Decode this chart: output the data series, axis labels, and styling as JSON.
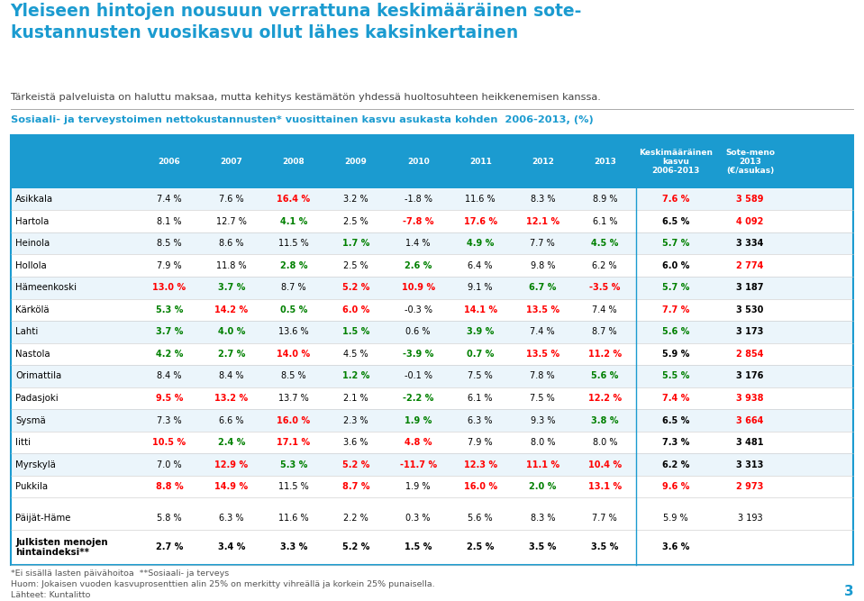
{
  "title_line1": "Yleiseen hintojen nousuun verrattuna keskimääräinen sote-",
  "title_line2": "kustannusten vuosikasvu ollut lähes kaksinkertainen",
  "subtitle": "Tärkeistä palveluista on haluttu maksaa, mutta kehitys kestämätön yhdessä huoltosuhteen heikkenemisen kanssa.",
  "table_title": "Sosiaali- ja terveystoimen nettokustannusten* vuosittainen kasvu asukasta kohden  2006-2013, (%)",
  "col_headers": [
    "2006",
    "2007",
    "2008",
    "2009",
    "2010",
    "2011",
    "2012",
    "2013",
    "Keskimääräinen\nkasvu\n2006-2013",
    "Sote-meno\n2013\n(€/asukas)"
  ],
  "rows": [
    {
      "name": "Asikkala",
      "vals": [
        "7.4 %",
        "7.6 %",
        "16.4 %",
        "3.2 %",
        "-1.8 %",
        "11.6 %",
        "8.3 %",
        "8.9 %",
        "7.6 %",
        "3 589"
      ],
      "colors": [
        "k",
        "k",
        "r",
        "k",
        "k",
        "k",
        "k",
        "k",
        "r",
        "r"
      ]
    },
    {
      "name": "Hartola",
      "vals": [
        "8.1 %",
        "12.7 %",
        "4.1 %",
        "2.5 %",
        "-7.8 %",
        "17.6 %",
        "12.1 %",
        "6.1 %",
        "6.5 %",
        "4 092"
      ],
      "colors": [
        "k",
        "k",
        "g",
        "k",
        "r",
        "r",
        "r",
        "k",
        "k",
        "r"
      ]
    },
    {
      "name": "Heinola",
      "vals": [
        "8.5 %",
        "8.6 %",
        "11.5 %",
        "1.7 %",
        "1.4 %",
        "4.9 %",
        "7.7 %",
        "4.5 %",
        "5.7 %",
        "3 334"
      ],
      "colors": [
        "k",
        "k",
        "k",
        "g",
        "k",
        "g",
        "k",
        "g",
        "g",
        "k"
      ]
    },
    {
      "name": "Hollola",
      "vals": [
        "7.9 %",
        "11.8 %",
        "2.8 %",
        "2.5 %",
        "2.6 %",
        "6.4 %",
        "9.8 %",
        "6.2 %",
        "6.0 %",
        "2 774"
      ],
      "colors": [
        "k",
        "k",
        "g",
        "k",
        "g",
        "k",
        "k",
        "k",
        "k",
        "r"
      ]
    },
    {
      "name": "Hämeenkoski",
      "vals": [
        "13.0 %",
        "3.7 %",
        "8.7 %",
        "5.2 %",
        "10.9 %",
        "9.1 %",
        "6.7 %",
        "-3.5 %",
        "5.7 %",
        "3 187"
      ],
      "colors": [
        "r",
        "g",
        "k",
        "r",
        "r",
        "k",
        "g",
        "r",
        "g",
        "k"
      ]
    },
    {
      "name": "Kärkölä",
      "vals": [
        "5.3 %",
        "14.2 %",
        "0.5 %",
        "6.0 %",
        "-0.3 %",
        "14.1 %",
        "13.5 %",
        "7.4 %",
        "7.7 %",
        "3 530"
      ],
      "colors": [
        "g",
        "r",
        "g",
        "r",
        "k",
        "r",
        "r",
        "k",
        "r",
        "k"
      ]
    },
    {
      "name": "Lahti",
      "vals": [
        "3.7 %",
        "4.0 %",
        "13.6 %",
        "1.5 %",
        "0.6 %",
        "3.9 %",
        "7.4 %",
        "8.7 %",
        "5.6 %",
        "3 173"
      ],
      "colors": [
        "g",
        "g",
        "k",
        "g",
        "k",
        "g",
        "k",
        "k",
        "g",
        "k"
      ]
    },
    {
      "name": "Nastola",
      "vals": [
        "4.2 %",
        "2.7 %",
        "14.0 %",
        "4.5 %",
        "-3.9 %",
        "0.7 %",
        "13.5 %",
        "11.2 %",
        "5.9 %",
        "2 854"
      ],
      "colors": [
        "g",
        "g",
        "r",
        "k",
        "g",
        "g",
        "r",
        "r",
        "k",
        "r"
      ]
    },
    {
      "name": "Orimattila",
      "vals": [
        "8.4 %",
        "8.4 %",
        "8.5 %",
        "1.2 %",
        "-0.1 %",
        "7.5 %",
        "7.8 %",
        "5.6 %",
        "5.5 %",
        "3 176"
      ],
      "colors": [
        "k",
        "k",
        "k",
        "g",
        "k",
        "k",
        "k",
        "g",
        "g",
        "k"
      ]
    },
    {
      "name": "Padasjoki",
      "vals": [
        "9.5 %",
        "13.2 %",
        "13.7 %",
        "2.1 %",
        "-2.2 %",
        "6.1 %",
        "7.5 %",
        "12.2 %",
        "7.4 %",
        "3 938"
      ],
      "colors": [
        "r",
        "r",
        "k",
        "k",
        "g",
        "k",
        "k",
        "r",
        "r",
        "r"
      ]
    },
    {
      "name": "Sysmä",
      "vals": [
        "7.3 %",
        "6.6 %",
        "16.0 %",
        "2.3 %",
        "1.9 %",
        "6.3 %",
        "9.3 %",
        "3.8 %",
        "6.5 %",
        "3 664"
      ],
      "colors": [
        "k",
        "k",
        "r",
        "k",
        "g",
        "k",
        "k",
        "g",
        "k",
        "r"
      ]
    },
    {
      "name": "Iitti",
      "vals": [
        "10.5 %",
        "2.4 %",
        "17.1 %",
        "3.6 %",
        "4.8 %",
        "7.9 %",
        "8.0 %",
        "8.0 %",
        "7.3 %",
        "3 481"
      ],
      "colors": [
        "r",
        "g",
        "r",
        "k",
        "r",
        "k",
        "k",
        "k",
        "k",
        "k"
      ]
    },
    {
      "name": "Myrskylä",
      "vals": [
        "7.0 %",
        "12.9 %",
        "5.3 %",
        "5.2 %",
        "-11.7 %",
        "12.3 %",
        "11.1 %",
        "10.4 %",
        "6.2 %",
        "3 313"
      ],
      "colors": [
        "k",
        "r",
        "g",
        "r",
        "r",
        "r",
        "r",
        "r",
        "k",
        "k"
      ]
    },
    {
      "name": "Pukkila",
      "vals": [
        "8.8 %",
        "14.9 %",
        "11.5 %",
        "8.7 %",
        "1.9 %",
        "16.0 %",
        "2.0 %",
        "13.1 %",
        "9.6 %",
        "2 973"
      ],
      "colors": [
        "r",
        "r",
        "k",
        "r",
        "k",
        "r",
        "g",
        "r",
        "r",
        "r"
      ]
    }
  ],
  "summary_rows": [
    {
      "name": "Päijät-Häme",
      "vals": [
        "5.8 %",
        "6.3 %",
        "11.6 %",
        "2.2 %",
        "0.3 %",
        "5.6 %",
        "8.3 %",
        "7.7 %",
        "5.9 %",
        "3 193"
      ],
      "colors": [
        "k",
        "k",
        "k",
        "k",
        "k",
        "k",
        "k",
        "k",
        "k",
        "k"
      ],
      "bold": false
    },
    {
      "name": "Julkisten menojen\nhintaindeksi**",
      "vals": [
        "2.7 %",
        "3.4 %",
        "3.3 %",
        "5.2 %",
        "1.5 %",
        "2.5 %",
        "3.5 %",
        "3.5 %",
        "3.6 %",
        ""
      ],
      "colors": [
        "k",
        "k",
        "k",
        "k",
        "k",
        "k",
        "k",
        "k",
        "k",
        "k"
      ],
      "bold": true
    }
  ],
  "footnotes": [
    "*Ei sisällä lasten päivähoitoa  **Sosiaali- ja terveys",
    "Huom: Jokaisen vuoden kasvuprosenttien alin 25% on merkitty vihreällä ja korkein 25% punaisella.",
    "Lähteet: Kuntalitto"
  ],
  "color_red": "#FF0000",
  "color_green": "#008000",
  "color_black": "#000000",
  "header_bg": "#1B9BD0",
  "header_text": "#FFFFFF",
  "title_color": "#1B9BD0",
  "table_title_color": "#1B9BD0",
  "border_color": "#1B9BD0",
  "page_number": "3"
}
